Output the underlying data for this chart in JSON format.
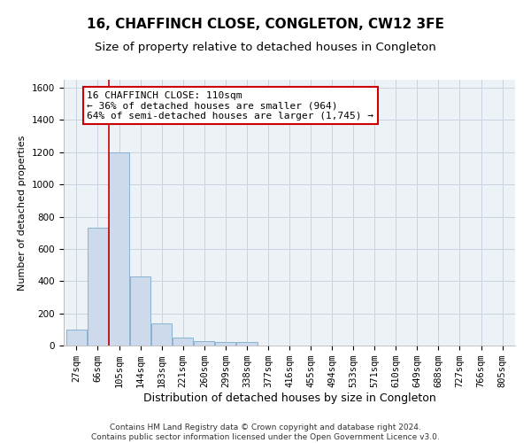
{
  "title1": "16, CHAFFINCH CLOSE, CONGLETON, CW12 3FE",
  "title2": "Size of property relative to detached houses in Congleton",
  "xlabel": "Distribution of detached houses by size in Congleton",
  "ylabel": "Number of detached properties",
  "footer1": "Contains HM Land Registry data © Crown copyright and database right 2024.",
  "footer2": "Contains public sector information licensed under the Open Government Licence v3.0.",
  "bar_labels": [
    "27sqm",
    "66sqm",
    "105sqm",
    "144sqm",
    "183sqm",
    "221sqm",
    "260sqm",
    "299sqm",
    "338sqm",
    "377sqm",
    "416sqm",
    "455sqm",
    "494sqm",
    "533sqm",
    "571sqm",
    "610sqm",
    "649sqm",
    "688sqm",
    "727sqm",
    "766sqm",
    "805sqm"
  ],
  "bar_heights": [
    100,
    730,
    1200,
    430,
    140,
    50,
    30,
    20,
    20,
    0,
    0,
    0,
    0,
    0,
    0,
    0,
    0,
    0,
    0,
    0,
    0
  ],
  "bar_color": "#ccdaeb",
  "bar_edge_color": "#7aabcc",
  "red_line_x": 1.5,
  "ylim": [
    0,
    1650
  ],
  "yticks": [
    0,
    200,
    400,
    600,
    800,
    1000,
    1200,
    1400,
    1600
  ],
  "annotation_text": "16 CHAFFINCH CLOSE: 110sqm\n← 36% of detached houses are smaller (964)\n64% of semi-detached houses are larger (1,745) →",
  "annotation_box_color": "#ffffff",
  "annotation_border_color": "#cc0000",
  "red_line_color": "#cc0000",
  "grid_color": "#c8d4e0",
  "background_color": "#edf2f7",
  "title1_fontsize": 11,
  "title2_fontsize": 9.5,
  "xlabel_fontsize": 9,
  "ylabel_fontsize": 8,
  "tick_fontsize": 7.5,
  "annotation_fontsize": 8,
  "footer_fontsize": 6.5
}
